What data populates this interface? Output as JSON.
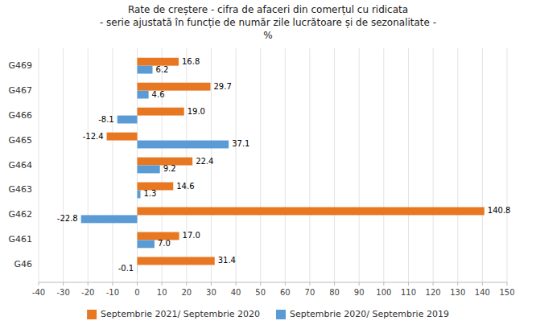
{
  "chart_data": {
    "type": "bar",
    "orientation": "horizontal",
    "title": "Rate de creștere - cifra de afaceri din comerțul cu ridicata\n- serie ajustată în funcție de număr zile lucrătoare și de sezonalitate -\n%",
    "categories": [
      "G46",
      "G461",
      "G462",
      "G463",
      "G464",
      "G465",
      "G466",
      "G467",
      "G469"
    ],
    "series": [
      {
        "name": "Septembrie 2021/ Septembrie 2020",
        "color": "#E87722",
        "values": [
          31.4,
          17.0,
          140.8,
          14.6,
          22.4,
          -12.4,
          19.0,
          29.7,
          16.8
        ],
        "value_labels": [
          "31.4",
          "17.0",
          "140.8",
          "14.6",
          "22.4",
          "-12.4",
          "19.0",
          "29.7",
          "16.8"
        ]
      },
      {
        "name": "Septembrie 2020/ Septembrie 2019",
        "color": "#5B9BD5",
        "values": [
          -0.1,
          7.0,
          -22.8,
          1.3,
          9.2,
          37.1,
          -8.1,
          4.6,
          6.2
        ],
        "value_labels": [
          "-0.1",
          "7.0",
          "-22.8",
          "1.3",
          "9.2",
          "37.1",
          "-8.1",
          "4.6",
          "6.2"
        ]
      }
    ],
    "xlim": [
      -40,
      150
    ],
    "xticks": [
      -40,
      -30,
      -20,
      -10,
      0,
      10,
      20,
      30,
      40,
      50,
      60,
      70,
      80,
      90,
      100,
      110,
      120,
      130,
      140,
      150
    ],
    "grid": true,
    "legend": "bottom",
    "data_labels": true
  }
}
